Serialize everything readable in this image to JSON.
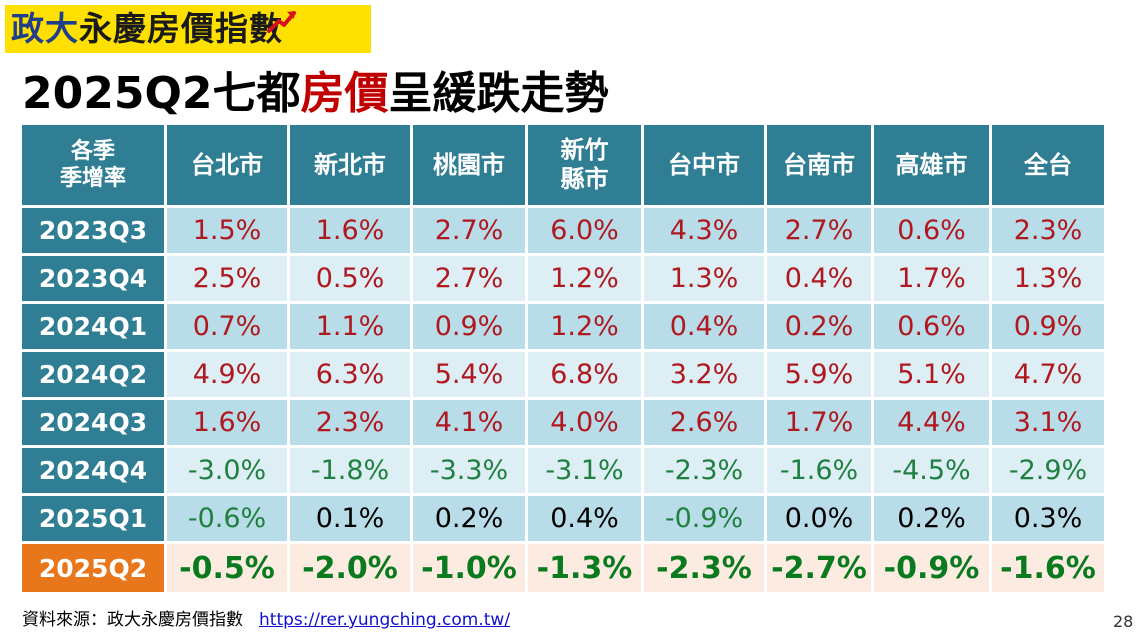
{
  "logo": {
    "text_a": "政大",
    "text_b": "永慶",
    "text_c": "房價指數"
  },
  "title": {
    "part1": "2025Q2七都",
    "part2": "房價",
    "part3": "呈緩跌走勢"
  },
  "table": {
    "corner_line1": "各季",
    "corner_line2": "季增率",
    "columns": [
      {
        "line1": "台北市",
        "line2": ""
      },
      {
        "line1": "新北市",
        "line2": ""
      },
      {
        "line1": "桃園市",
        "line2": ""
      },
      {
        "line1": "新竹",
        "line2": "縣市"
      },
      {
        "line1": "台中市",
        "line2": ""
      },
      {
        "line1": "台南市",
        "line2": ""
      },
      {
        "line1": "高雄市",
        "line2": ""
      },
      {
        "line1": "全台",
        "line2": ""
      }
    ],
    "rows": [
      {
        "quarter": "2023Q3",
        "values": [
          "1.5%",
          "1.6%",
          "2.7%",
          "6.0%",
          "4.3%",
          "2.7%",
          "0.6%",
          "2.3%"
        ]
      },
      {
        "quarter": "2023Q4",
        "values": [
          "2.5%",
          "0.5%",
          "2.7%",
          "1.2%",
          "1.3%",
          "0.4%",
          "1.7%",
          "1.3%"
        ]
      },
      {
        "quarter": "2024Q1",
        "values": [
          "0.7%",
          "1.1%",
          "0.9%",
          "1.2%",
          "0.4%",
          "0.2%",
          "0.6%",
          "0.9%"
        ]
      },
      {
        "quarter": "2024Q2",
        "values": [
          "4.9%",
          "6.3%",
          "5.4%",
          "6.8%",
          "3.2%",
          "5.9%",
          "5.1%",
          "4.7%"
        ]
      },
      {
        "quarter": "2024Q3",
        "values": [
          "1.6%",
          "2.3%",
          "4.1%",
          "4.0%",
          "2.6%",
          "1.7%",
          "4.4%",
          "3.1%"
        ]
      },
      {
        "quarter": "2024Q4",
        "values": [
          "-3.0%",
          "-1.8%",
          "-3.3%",
          "-3.1%",
          "-2.3%",
          "-1.6%",
          "-4.5%",
          "-2.9%"
        ]
      },
      {
        "quarter": "2025Q1",
        "values": [
          "-0.6%",
          "0.1%",
          "0.2%",
          "0.4%",
          "-0.9%",
          "0.0%",
          "0.2%",
          "0.3%"
        ]
      },
      {
        "quarter": "2025Q2",
        "values": [
          "-0.5%",
          "-2.0%",
          "-1.0%",
          "-1.3%",
          "-2.3%",
          "-2.7%",
          "-0.9%",
          "-1.6%"
        ],
        "highlight": true
      }
    ]
  },
  "footer": {
    "source_label": "資料來源：政大永慶房價指數",
    "source_url": "https://rer.yungching.com.tw/"
  },
  "page_number": "28",
  "colors": {
    "header_teal": "#307e94",
    "highlight_orange": "#e8761b",
    "positive_red": "#b01820",
    "negative_green": "#1f8040",
    "logo_yellow": "#ffe000",
    "title_red": "#c00000"
  }
}
